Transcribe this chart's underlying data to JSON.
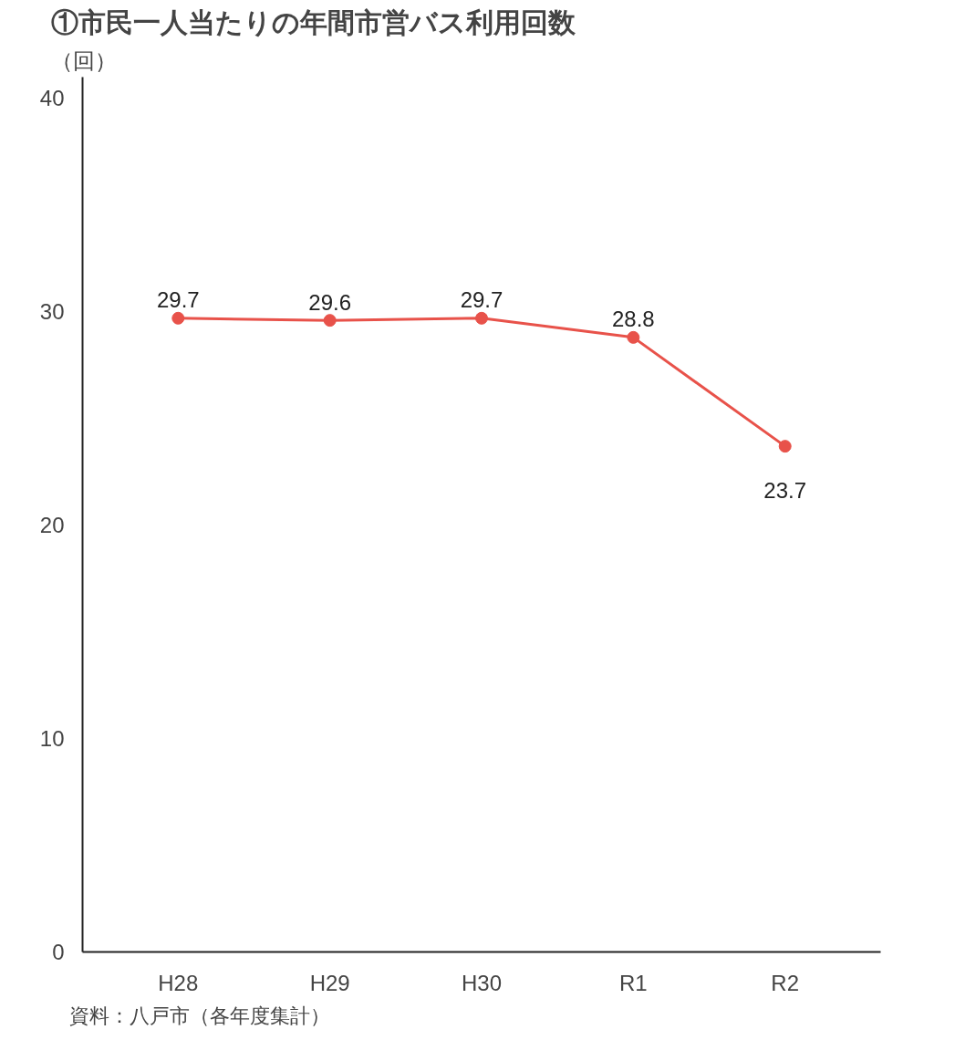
{
  "chart_data": {
    "type": "line",
    "title": "①市民一人当たりの年間市営バス利用回数",
    "ylabel": "（回）",
    "categories": [
      "H28",
      "H29",
      "H30",
      "R1",
      "R2"
    ],
    "series": [
      {
        "color": "#e8524a",
        "values": [
          29.7,
          29.6,
          29.7,
          28.8,
          23.7
        ]
      }
    ],
    "ylim": [
      0,
      41
    ],
    "yticks": [
      0,
      10,
      20,
      30,
      40
    ],
    "grid": false,
    "marker": "circle",
    "line_style": "solid",
    "data_labels": true,
    "annotations": [
      "資料：八戸市（各年度集計）"
    ]
  }
}
